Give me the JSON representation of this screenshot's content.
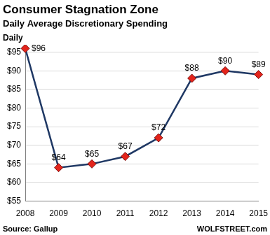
{
  "chart_data": {
    "type": "line",
    "title": "Consumer Stagnation Zone",
    "subtitle": "Daily Average Discretionary Spending",
    "y_label": "Daily",
    "annotations": [
      "Source: Gallup",
      "WOLFSTREET.com"
    ],
    "categories": [
      "2008",
      "2009",
      "2010",
      "2011",
      "2012",
      "2013",
      "2014",
      "2015"
    ],
    "values": [
      96,
      64,
      65,
      67,
      72,
      88,
      90,
      89
    ],
    "value_labels": [
      "$96",
      "$64",
      "$65",
      "$67",
      "$72",
      "$88",
      "$90",
      "$89"
    ],
    "color": "#1f3864",
    "marker": "diamond",
    "ylim": [
      55,
      97
    ],
    "yticks": [
      {
        "value": 55,
        "label": "$55"
      },
      {
        "value": 60,
        "label": "$60"
      },
      {
        "value": 65,
        "label": "$65"
      },
      {
        "value": 70,
        "label": "$70"
      },
      {
        "value": 75,
        "label": "$75"
      },
      {
        "value": 80,
        "label": "$80"
      },
      {
        "value": 85,
        "label": "$85"
      },
      {
        "value": 90,
        "label": "$90"
      },
      {
        "value": 95,
        "label": "$95"
      }
    ],
    "grid": true,
    "data_labels": true
  }
}
